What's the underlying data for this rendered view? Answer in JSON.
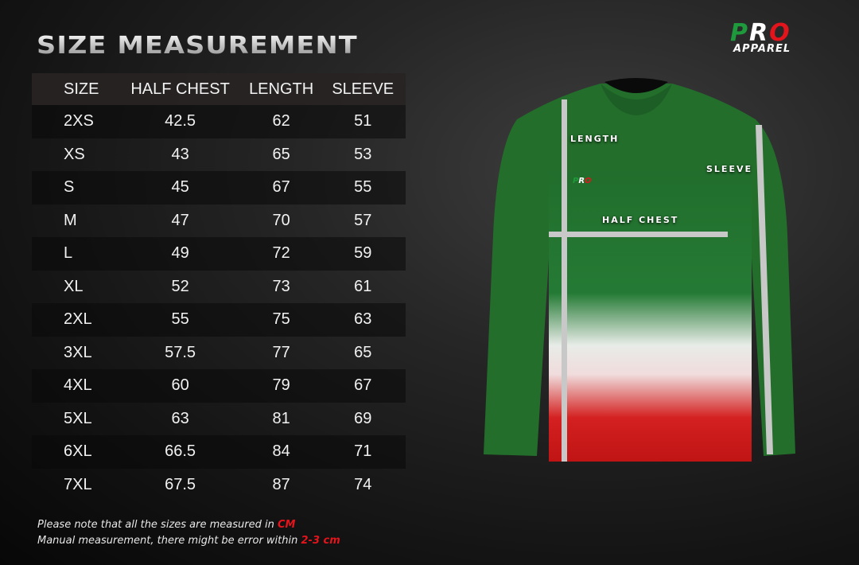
{
  "title": "SIZE MEASUREMENT",
  "brand": {
    "top": "PRO",
    "bottom": "APPAREL",
    "colors": [
      "#1e9a3c",
      "#ffffff",
      "#e3141c"
    ]
  },
  "table": {
    "headers": [
      "SIZE",
      "HALF CHEST",
      "LENGTH",
      "SLEEVE"
    ],
    "rows": [
      [
        "2XS",
        "42.5",
        "62",
        "51"
      ],
      [
        "XS",
        "43",
        "65",
        "53"
      ],
      [
        "S",
        "45",
        "67",
        "55"
      ],
      [
        "M",
        "47",
        "70",
        "57"
      ],
      [
        "L",
        "49",
        "72",
        "59"
      ],
      [
        "XL",
        "52",
        "73",
        "61"
      ],
      [
        "2XL",
        "55",
        "75",
        "63"
      ],
      [
        "3XL",
        "57.5",
        "77",
        "65"
      ],
      [
        "4XL",
        "60",
        "79",
        "67"
      ],
      [
        "5XL",
        "63",
        "81",
        "69"
      ],
      [
        "6XL",
        "66.5",
        "84",
        "71"
      ],
      [
        "7XL",
        "67.5",
        "87",
        "74"
      ]
    ]
  },
  "notes": {
    "line1": "Please note that all the sizes are measured in ",
    "line1_hl": "CM",
    "line2": "Manual measurement, there might be error within ",
    "line2_hl": "2-3 cm"
  },
  "shirt_labels": {
    "length": "LENGTH",
    "sleeve": "SLEEVE",
    "half_chest": "HALF CHEST"
  },
  "accent": "#e3141c"
}
